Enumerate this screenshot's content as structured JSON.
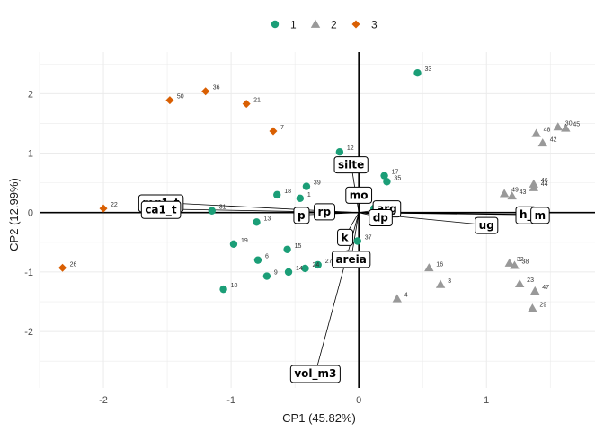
{
  "chart_data": {
    "type": "scatter",
    "subtype": "pca-biplot",
    "xlabel": "CP1 (45.82%)",
    "ylabel": "CP2 (12.99%)",
    "xlim": [
      -2.5,
      1.85
    ],
    "ylim": [
      -2.95,
      2.7
    ],
    "x_ticks": [
      -2,
      -1,
      0,
      1
    ],
    "y_ticks": [
      -2,
      -1,
      0,
      1,
      2
    ],
    "grid": true,
    "legend_position": "top",
    "colors": {
      "1": "#1b9e77",
      "2": "#999999",
      "3": "#d95f02"
    },
    "shapes": {
      "1": "circle",
      "2": "triangle",
      "3": "diamond"
    },
    "legend": [
      {
        "group": "1",
        "label": "1"
      },
      {
        "group": "2",
        "label": "2"
      },
      {
        "group": "3",
        "label": "3"
      }
    ],
    "points": [
      {
        "label": "33",
        "group": "1",
        "x": 0.46,
        "y": 2.35
      },
      {
        "label": "12",
        "group": "1",
        "x": -0.15,
        "y": 1.02
      },
      {
        "label": "17",
        "group": "1",
        "x": 0.2,
        "y": 0.62
      },
      {
        "label": "35",
        "group": "1",
        "x": 0.22,
        "y": 0.52
      },
      {
        "label": "39",
        "group": "1",
        "x": -0.41,
        "y": 0.44
      },
      {
        "label": "18",
        "group": "1",
        "x": -0.64,
        "y": 0.3
      },
      {
        "label": "1",
        "group": "1",
        "x": -0.46,
        "y": 0.24
      },
      {
        "label": "41",
        "group": "1",
        "x": -0.04,
        "y": 0.27
      },
      {
        "label": "31",
        "group": "1",
        "x": -1.15,
        "y": 0.03
      },
      {
        "label": "11",
        "group": "1",
        "x": 0.12,
        "y": 0.07
      },
      {
        "label": "2",
        "group": "1",
        "x": 0.22,
        "y": -0.1
      },
      {
        "label": "13",
        "group": "1",
        "x": -0.8,
        "y": -0.16
      },
      {
        "label": "19",
        "group": "1",
        "x": -0.98,
        "y": -0.53
      },
      {
        "label": "15",
        "group": "1",
        "x": -0.56,
        "y": -0.62
      },
      {
        "label": "6",
        "group": "1",
        "x": -0.79,
        "y": -0.8
      },
      {
        "label": "37",
        "group": "1",
        "x": -0.01,
        "y": -0.48
      },
      {
        "label": "20",
        "group": "1",
        "x": -0.16,
        "y": -0.74
      },
      {
        "label": "27",
        "group": "1",
        "x": -0.32,
        "y": -0.88
      },
      {
        "label": "24",
        "group": "1",
        "x": -0.42,
        "y": -0.94
      },
      {
        "label": "14",
        "group": "1",
        "x": -0.55,
        "y": -1.0
      },
      {
        "label": "9",
        "group": "1",
        "x": -0.72,
        "y": -1.07
      },
      {
        "label": "10",
        "group": "1",
        "x": -1.06,
        "y": -1.29
      },
      {
        "label": "30",
        "group": "2",
        "x": 1.56,
        "y": 1.44
      },
      {
        "label": "45",
        "group": "2",
        "x": 1.62,
        "y": 1.42
      },
      {
        "label": "48",
        "group": "2",
        "x": 1.39,
        "y": 1.33
      },
      {
        "label": "42",
        "group": "2",
        "x": 1.44,
        "y": 1.17
      },
      {
        "label": "46",
        "group": "2",
        "x": 1.37,
        "y": 0.48
      },
      {
        "label": "44",
        "group": "2",
        "x": 1.37,
        "y": 0.42
      },
      {
        "label": "49",
        "group": "2",
        "x": 1.14,
        "y": 0.32
      },
      {
        "label": "43",
        "group": "2",
        "x": 1.2,
        "y": 0.28
      },
      {
        "label": "16",
        "group": "2",
        "x": 0.55,
        "y": -0.93
      },
      {
        "label": "32",
        "group": "2",
        "x": 1.18,
        "y": -0.85
      },
      {
        "label": "38",
        "group": "2",
        "x": 1.22,
        "y": -0.89
      },
      {
        "label": "3",
        "group": "2",
        "x": 0.64,
        "y": -1.21
      },
      {
        "label": "23",
        "group": "2",
        "x": 1.26,
        "y": -1.2
      },
      {
        "label": "47",
        "group": "2",
        "x": 1.38,
        "y": -1.32
      },
      {
        "label": "4",
        "group": "2",
        "x": 0.3,
        "y": -1.45
      },
      {
        "label": "29",
        "group": "2",
        "x": 1.36,
        "y": -1.61
      },
      {
        "label": "50",
        "group": "3",
        "x": -1.48,
        "y": 1.89
      },
      {
        "label": "36",
        "group": "3",
        "x": -1.2,
        "y": 2.04
      },
      {
        "label": "21",
        "group": "3",
        "x": -0.88,
        "y": 1.83
      },
      {
        "label": "7",
        "group": "3",
        "x": -0.67,
        "y": 1.37
      },
      {
        "label": "22",
        "group": "3",
        "x": -2.0,
        "y": 0.07
      },
      {
        "label": "26",
        "group": "3",
        "x": -2.32,
        "y": -0.93
      }
    ],
    "loadings": [
      {
        "label": "silte",
        "x": -0.06,
        "y": 0.81
      },
      {
        "label": "mo",
        "x": 0.0,
        "y": 0.3
      },
      {
        "label": "arg",
        "x": 0.22,
        "y": 0.07
      },
      {
        "label": "dp",
        "x": 0.17,
        "y": -0.08
      },
      {
        "label": "mg1_t",
        "x": -1.55,
        "y": 0.17
      },
      {
        "label": "ca1_t",
        "x": -1.55,
        "y": 0.06
      },
      {
        "label": "p",
        "x": -0.45,
        "y": -0.04
      },
      {
        "label": "rp",
        "x": -0.27,
        "y": 0.02
      },
      {
        "label": "k",
        "x": -0.11,
        "y": -0.41
      },
      {
        "label": "areia",
        "x": -0.06,
        "y": -0.78
      },
      {
        "label": "vol_m3",
        "x": -0.34,
        "y": -2.7
      },
      {
        "label": "ug",
        "x": 1.0,
        "y": -0.21
      },
      {
        "label": "h_",
        "x": 1.31,
        "y": -0.03
      },
      {
        "label": "m",
        "x": 1.42,
        "y": -0.04
      }
    ]
  }
}
